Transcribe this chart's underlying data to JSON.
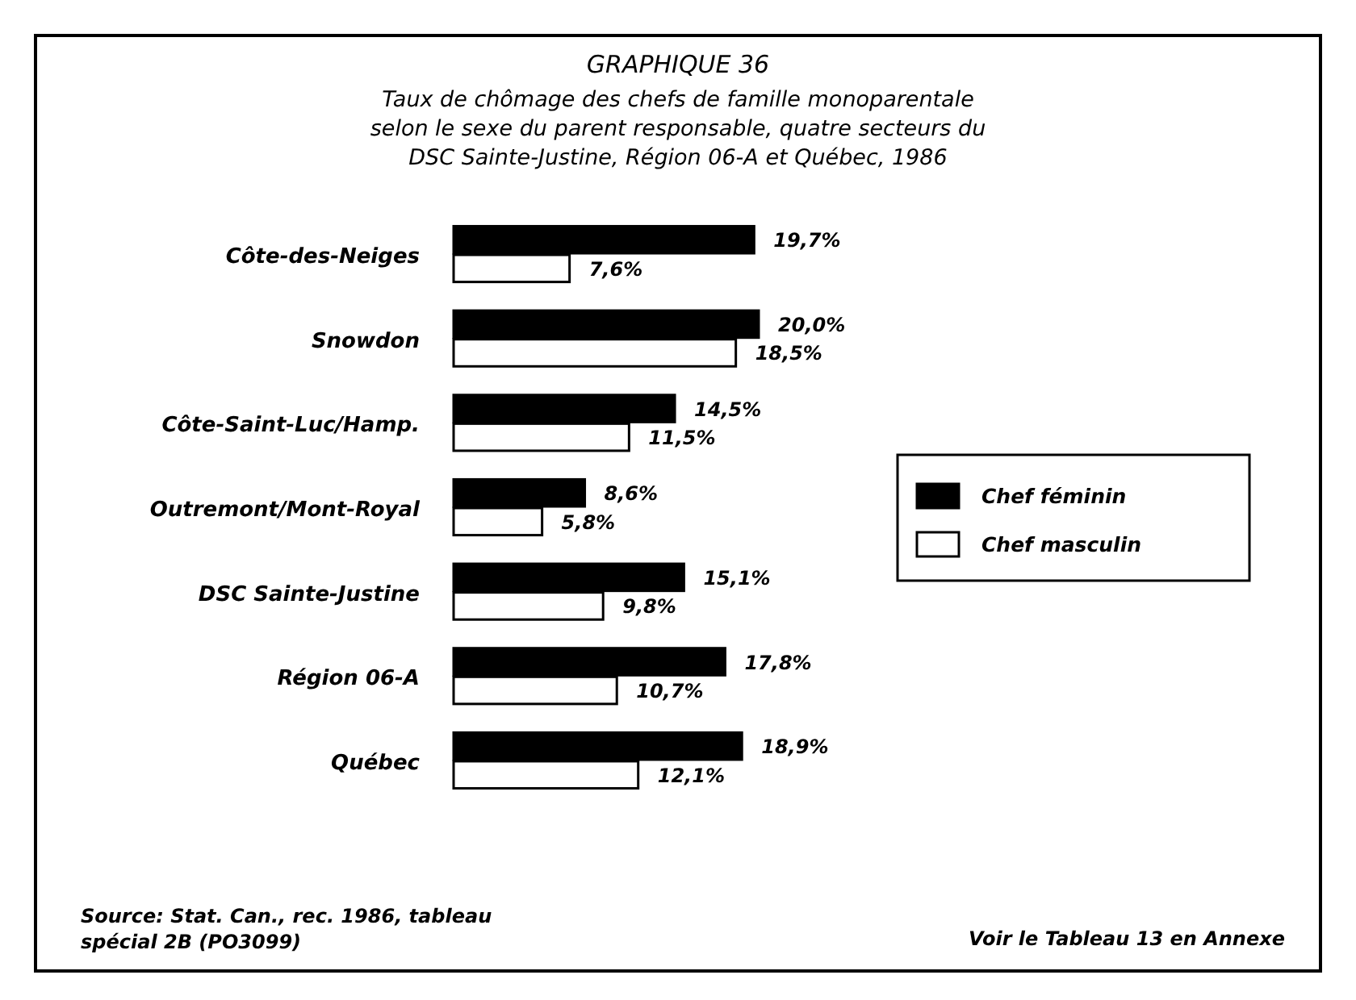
{
  "chart_data": {
    "type": "bar",
    "orientation": "horizontal",
    "title": "GRAPHIQUE 36",
    "subtitle": "Taux de chômage des chefs de famille monoparentale\nselon le sexe du parent responsable, quatre secteurs du\nDSC Sainte-Justine, Région 06-A et Québec, 1986",
    "categories": [
      "Côte-des-Neiges",
      "Snowdon",
      "Côte-Saint-Luc/Hamp.",
      "Outremont/Mont-Royal",
      "DSC Sainte-Justine",
      "Région 06-A",
      "Québec"
    ],
    "series": [
      {
        "name": "Chef féminin",
        "color": "#000000",
        "values": [
          19.7,
          20.0,
          14.5,
          8.6,
          15.1,
          17.8,
          18.9
        ],
        "value_labels": [
          "19,7%",
          "20,0%",
          "14,5%",
          "8,6%",
          "15,1%",
          "17,8%",
          "18,9%"
        ]
      },
      {
        "name": "Chef masculin",
        "color": "#ffffff",
        "values": [
          7.6,
          18.5,
          11.5,
          5.8,
          9.8,
          10.7,
          12.1
        ],
        "value_labels": [
          "7,6%",
          "18,5%",
          "11,5%",
          "5,8%",
          "9,8%",
          "10,7%",
          "12,1%"
        ]
      }
    ],
    "legend": "right",
    "annotations": [
      "Source: Stat. Can., rec. 1986, tableau\nspécial 2B (PO3099)",
      "Voir le Tableau 13 en Annexe"
    ]
  }
}
